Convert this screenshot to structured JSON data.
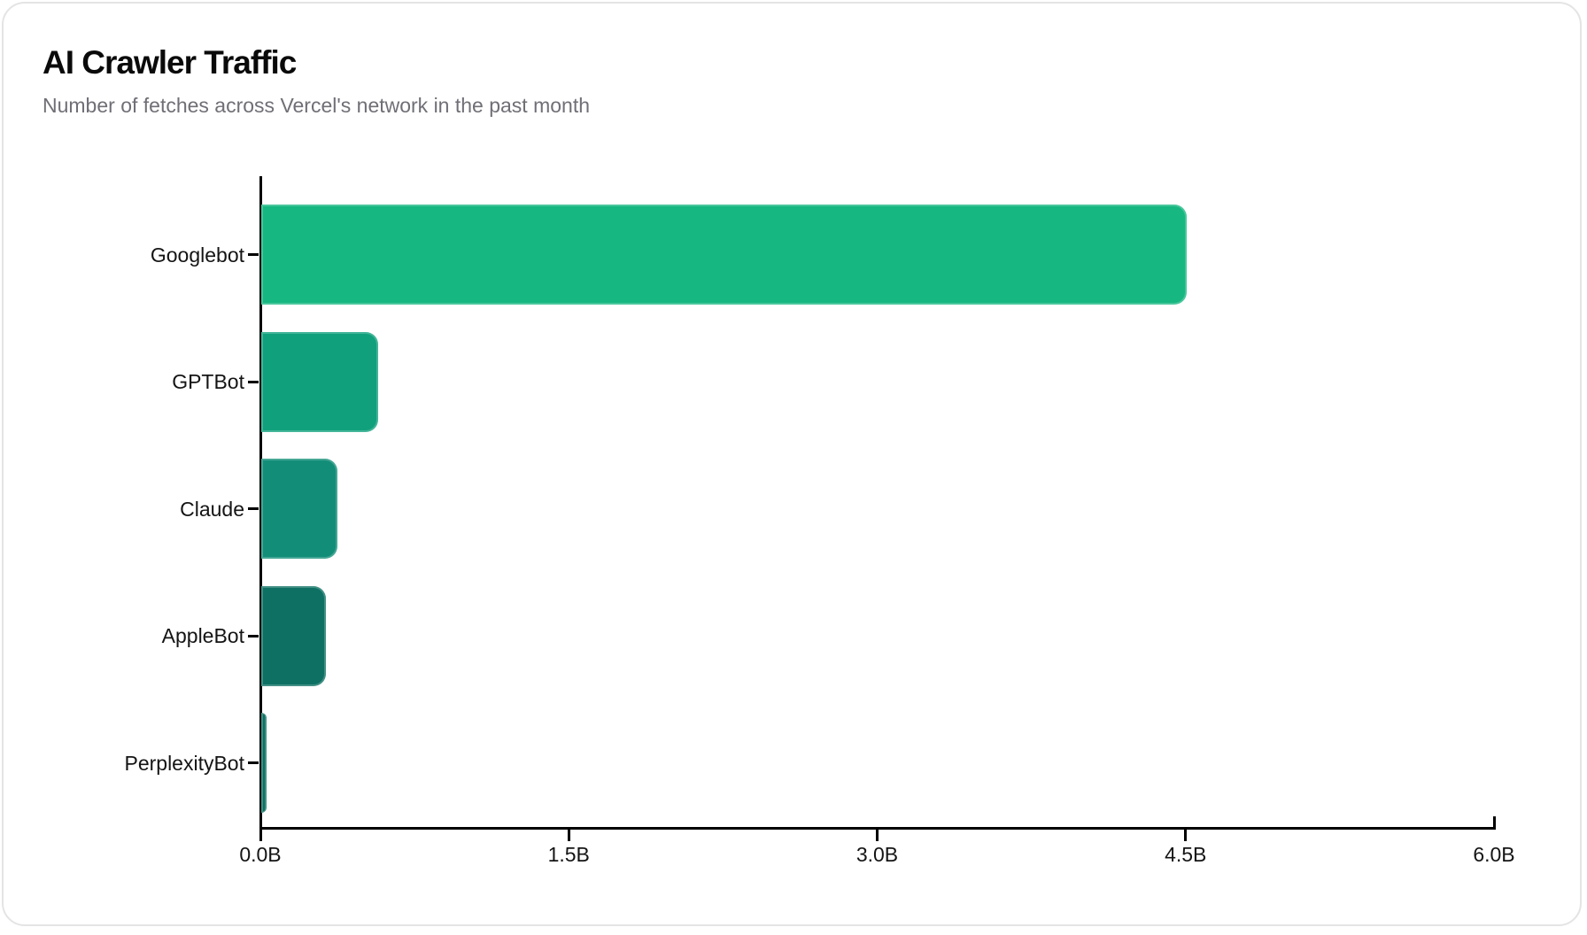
{
  "header": {
    "title": "AI Crawler Traffic",
    "subtitle": "Number of fetches across Vercel's network in the past month"
  },
  "chart_data": {
    "type": "bar",
    "orientation": "horizontal",
    "title": "AI Crawler Traffic",
    "subtitle": "Number of fetches across Vercel's network in the past month",
    "categories": [
      "Googlebot",
      "GPTBot",
      "Claude",
      "AppleBot",
      "PerplexityBot"
    ],
    "values": [
      4.5,
      0.57,
      0.37,
      0.315,
      0.025
    ],
    "value_unit": "billions of fetches",
    "xlim": [
      0,
      6
    ],
    "x_ticks": [
      {
        "value": 0.0,
        "label": "0.0B"
      },
      {
        "value": 1.5,
        "label": "1.5B"
      },
      {
        "value": 3.0,
        "label": "3.0B"
      },
      {
        "value": 4.5,
        "label": "4.5B"
      },
      {
        "value": 6.0,
        "label": "6.0B"
      }
    ],
    "grid": false,
    "legend": false,
    "bar_colors": [
      "#16B780",
      "#10A07C",
      "#128E78",
      "#0D7063",
      "#0D7063"
    ],
    "bar_patterns": [
      "solid",
      "solid",
      "solid",
      "dots",
      "dots"
    ],
    "axis_color": "#000000",
    "label_color": "#141414",
    "title_color": "#0a0a0a",
    "subtitle_color": "#6f6f76",
    "card_border_color": "#e4e4e4",
    "background_color": "#ffffff"
  }
}
